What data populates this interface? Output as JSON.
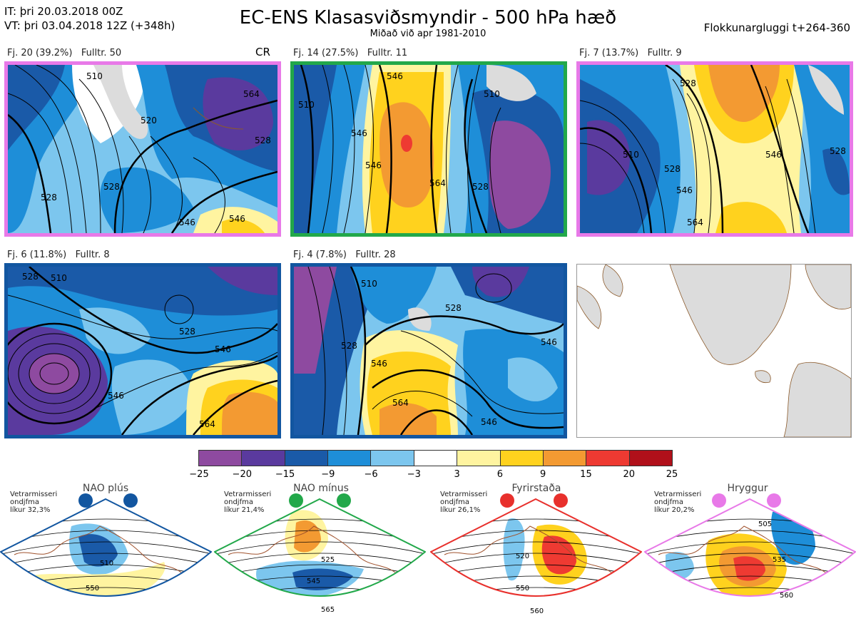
{
  "header": {
    "init_time": "IT: þri 20.03.2018 00Z",
    "valid_time": "VT: þri 03.04.2018 12Z  (+348h)",
    "title": "EC-ENS Klasasviðsmyndir - 500 hPa hæð",
    "subtitle": "Miðað við apr 1981-2010",
    "window": "Flokkunargluggi t+264-360"
  },
  "clusters": [
    {
      "label": "Fj. 20 (39.2%)",
      "members": "Fulltr. 50",
      "tag": "CR",
      "border_color": "#e879e8"
    },
    {
      "label": "Fj. 14 (27.5%)",
      "members": "Fulltr. 11",
      "border_color": "#22a84a"
    },
    {
      "label": "Fj. 7 (13.7%)",
      "members": "Fulltr. 9",
      "border_color": "#e879e8"
    },
    {
      "label": "Fj. 6 (11.8%)",
      "members": "Fulltr. 8",
      "border_color": "#1256a0"
    },
    {
      "label": "Fj. 4 (7.8%)",
      "members": "Fulltr. 28",
      "border_color": "#1256a0"
    }
  ],
  "contour_labels": {
    "c1": [
      "510",
      "528",
      "546",
      "520",
      "528",
      "546",
      "564",
      "528"
    ],
    "c2": [
      "546",
      "510",
      "546",
      "564",
      "528",
      "546",
      "510"
    ],
    "c3": [
      "528",
      "510",
      "546",
      "528",
      "546",
      "564",
      "528"
    ],
    "c4": [
      "528",
      "510",
      "528",
      "546",
      "546",
      "564"
    ],
    "c5": [
      "510",
      "528",
      "528",
      "546",
      "546",
      "564",
      "546"
    ]
  },
  "colorbar": {
    "ticks": [
      "−25",
      "−20",
      "−15",
      "−9",
      "−6",
      "−3",
      "3",
      "6",
      "9",
      "15",
      "20",
      "25"
    ],
    "colors": [
      "#8e4aa0",
      "#5a3a9e",
      "#1a5aa8",
      "#1e8ed8",
      "#7cc6ee",
      "#ffffff",
      "#fff4a0",
      "#ffd21e",
      "#f39a32",
      "#ee3a32",
      "#b0101a"
    ]
  },
  "regimes": [
    {
      "name": "NAO plús",
      "note": [
        "Vetrarmisseri",
        "ondjfma",
        "líkur 32,3%"
      ],
      "color": "#1256a0",
      "labels": [
        "510",
        "550"
      ]
    },
    {
      "name": "NAO mínus",
      "note": [
        "Vetrarmisseri",
        "ondjfma",
        "líkur 21,4%"
      ],
      "color": "#22a84a",
      "labels": [
        "525",
        "545",
        "565"
      ]
    },
    {
      "name": "Fyrirstaða",
      "note": [
        "Vetrarmisseri",
        "ondjfma",
        "líkur 26,1%"
      ],
      "color": "#e8302c",
      "labels": [
        "520",
        "550",
        "560"
      ]
    },
    {
      "name": "Hryggur",
      "note": [
        "Vetrarmisseri",
        "ondjfma",
        "líkur 20,2%"
      ],
      "color": "#e879e8",
      "labels": [
        "505",
        "535",
        "560"
      ]
    }
  ]
}
